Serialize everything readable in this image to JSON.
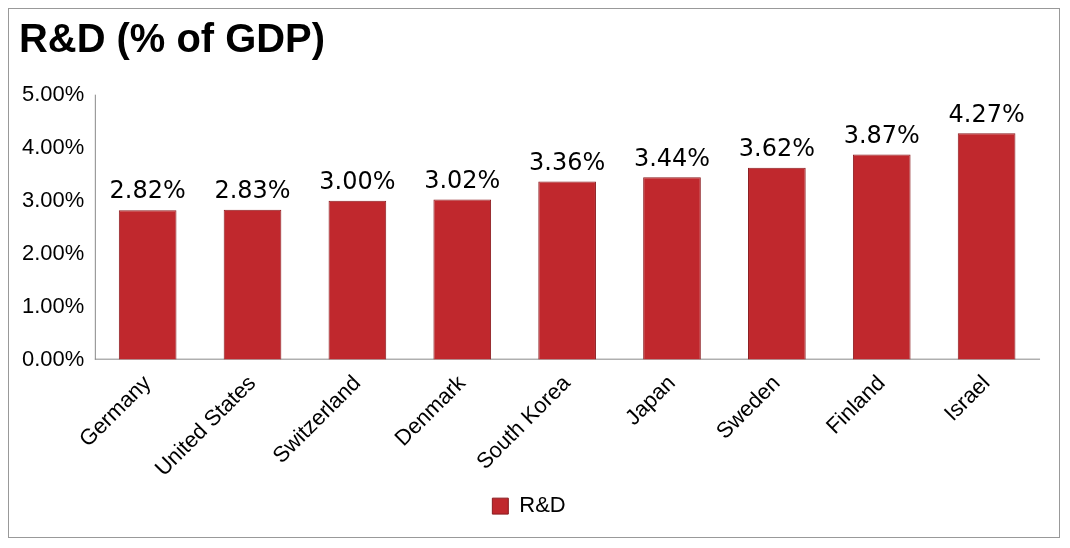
{
  "chart_data": {
    "type": "bar",
    "title": "R&D (% of GDP)",
    "categories": [
      "Germany",
      "United States",
      "Switzerland",
      "Denmark",
      "South Korea",
      "Japan",
      "Sweden",
      "Finland",
      "Israel"
    ],
    "series": [
      {
        "name": "R&D",
        "color": "#c0282d",
        "values": [
          2.82,
          2.83,
          3.0,
          3.02,
          3.36,
          3.44,
          3.62,
          3.87,
          4.27
        ],
        "value_labels": [
          "2.82%",
          "2.83%",
          "3.00%",
          "3.02%",
          "3.36%",
          "3.44%",
          "3.62%",
          "3.87%",
          "4.27%"
        ]
      }
    ],
    "ylim": [
      0,
      5
    ],
    "yticks": [
      {
        "value": 0,
        "label": "0.00%"
      },
      {
        "value": 1,
        "label": "1.00%"
      },
      {
        "value": 2,
        "label": "2.00%"
      },
      {
        "value": 3,
        "label": "3.00%"
      },
      {
        "value": 4,
        "label": "4.00%"
      },
      {
        "value": 5,
        "label": "5.00%"
      }
    ],
    "grid": false,
    "legend": "bottom"
  }
}
